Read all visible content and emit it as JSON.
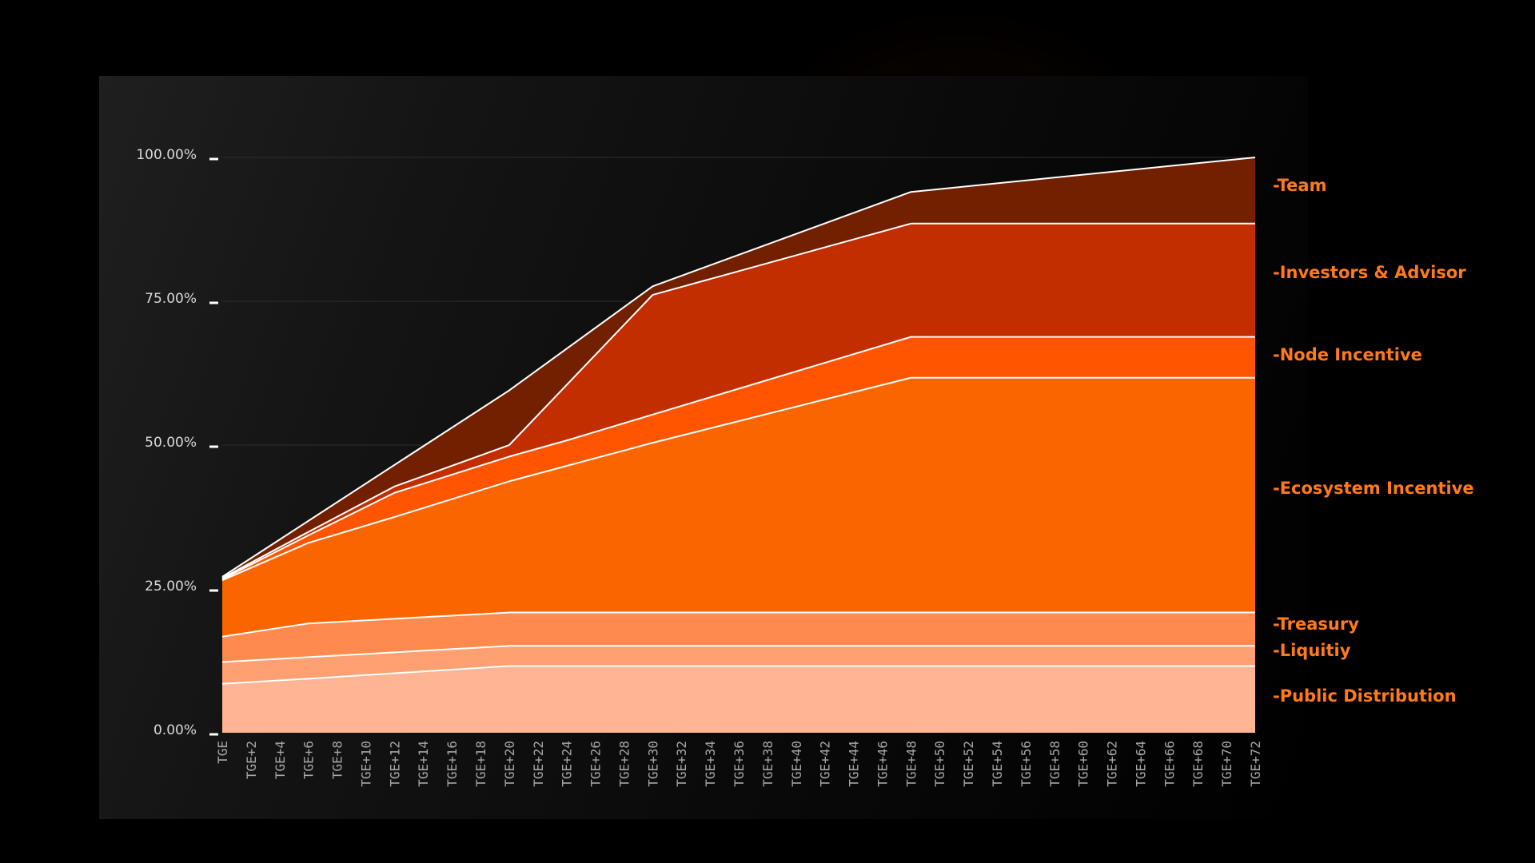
{
  "chart_data": {
    "type": "area",
    "stacked": true,
    "x": [
      "TGE",
      "TGE+2",
      "TGE+4",
      "TGE+6",
      "TGE+8",
      "TGE+10",
      "TGE+12",
      "TGE+14",
      "TGE+16",
      "TGE+18",
      "TGE+20",
      "TGE+22",
      "TGE+24",
      "TGE+26",
      "TGE+28",
      "TGE+30",
      "TGE+32",
      "TGE+34",
      "TGE+36",
      "TGE+38",
      "TGE+40",
      "TGE+42",
      "TGE+44",
      "TGE+46",
      "TGE+48",
      "TGE+50",
      "TGE+52",
      "TGE+54",
      "TGE+56",
      "TGE+58",
      "TGE+60",
      "TGE+62",
      "TGE+64",
      "TGE+66",
      "TGE+68",
      "TGE+70",
      "TGE+72"
    ],
    "ylim": [
      0,
      100
    ],
    "yticks": [
      0,
      25,
      50,
      75,
      100
    ],
    "ytick_labels": [
      "0.00%",
      "25.00%",
      "50.00%",
      "75.00%",
      "100.00%"
    ],
    "grid": true,
    "legend_position": "right",
    "series": [
      {
        "name": "-Public Distribution",
        "color": "#ffb593",
        "points": [
          [
            0,
            8.5
          ],
          [
            6,
            9.4
          ],
          [
            20,
            11.6
          ],
          [
            72,
            11.6
          ]
        ]
      },
      {
        "name": "-Liquitiy",
        "color": "#ffa072",
        "points": [
          [
            0,
            12.3
          ],
          [
            20,
            15.1
          ],
          [
            72,
            15.1
          ]
        ]
      },
      {
        "name": "-Treasury",
        "color": "#ff8a4e",
        "points": [
          [
            0,
            16.7
          ],
          [
            6,
            19.0
          ],
          [
            20,
            20.9
          ],
          [
            72,
            20.9
          ]
        ]
      },
      {
        "name": "-Ecosystem Incentive",
        "color": "#fa6500",
        "points": [
          [
            0,
            26.5
          ],
          [
            6,
            33.0
          ],
          [
            12,
            37.5
          ],
          [
            20,
            43.7
          ],
          [
            30,
            50.4
          ],
          [
            48,
            61.7
          ],
          [
            72,
            61.7
          ]
        ]
      },
      {
        "name": "-Node Incentive",
        "color": "#ff5500",
        "points": [
          [
            0,
            26.7
          ],
          [
            6,
            34.3
          ],
          [
            12,
            41.7
          ],
          [
            20,
            48.0
          ],
          [
            24,
            50.8
          ],
          [
            48,
            68.8
          ],
          [
            72,
            68.8
          ]
        ]
      },
      {
        "name": "-Investors & Advisor",
        "color": "#c22e00",
        "points": [
          [
            0,
            26.9
          ],
          [
            6,
            34.9
          ],
          [
            12,
            42.8
          ],
          [
            20,
            50.0
          ],
          [
            30,
            76.1
          ],
          [
            48,
            88.5
          ],
          [
            72,
            88.5
          ]
        ]
      },
      {
        "name": "-Team",
        "color": "#722000",
        "points": [
          [
            0,
            27.1
          ],
          [
            20,
            59.5
          ],
          [
            30,
            77.6
          ],
          [
            48,
            94.0
          ],
          [
            72,
            100
          ]
        ]
      }
    ]
  }
}
